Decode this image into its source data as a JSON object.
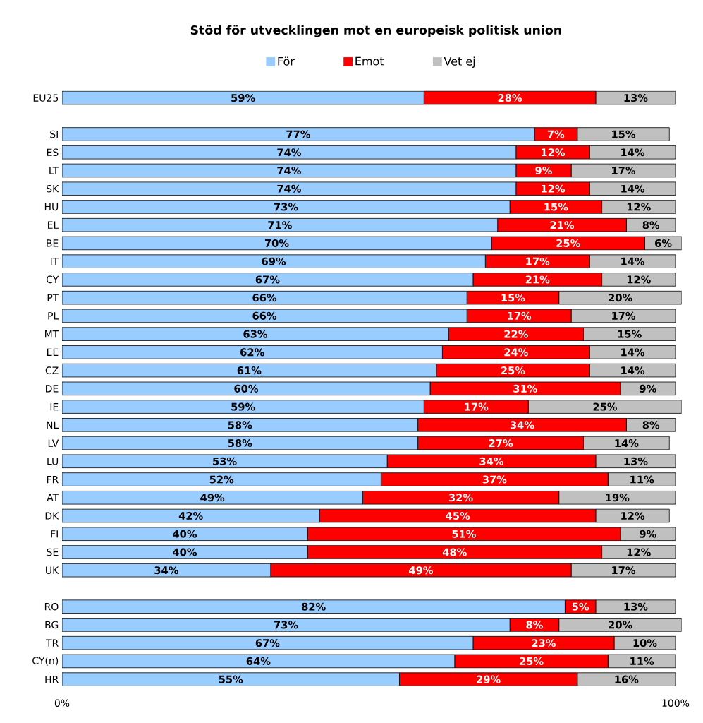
{
  "chart_data": {
    "type": "bar",
    "orientation": "horizontal",
    "stacked": true,
    "title": "Stöd för utvecklingen mot en europeisk politisk union",
    "categories": [
      "EU25",
      null,
      "SI",
      "ES",
      "LT",
      "SK",
      "HU",
      "EL",
      "BE",
      "IT",
      "CY",
      "PT",
      "PL",
      "MT",
      "EE",
      "CZ",
      "DE",
      "IE",
      "NL",
      "LV",
      "LU",
      "FR",
      "AT",
      "DK",
      "FI",
      "SE",
      "UK",
      null,
      "RO",
      "BG",
      "TR",
      "CY(n)",
      "HR"
    ],
    "series": [
      {
        "name": "För",
        "color": "#99ccff",
        "values": [
          59,
          null,
          77,
          74,
          74,
          74,
          73,
          71,
          70,
          69,
          67,
          66,
          66,
          63,
          62,
          61,
          60,
          59,
          58,
          58,
          53,
          52,
          49,
          42,
          40,
          40,
          34,
          null,
          82,
          73,
          67,
          64,
          55
        ],
        "value_labels": [
          "59%",
          null,
          "77%",
          "74%",
          "74%",
          "74%",
          "73%",
          "71%",
          "70%",
          "69%",
          "67%",
          "66%",
          "66%",
          "63%",
          "62%",
          "61%",
          "60%",
          "59%",
          "58%",
          "58%",
          "53%",
          "52%",
          "49%",
          "42%",
          "40%",
          "40%",
          "34%",
          null,
          "82%",
          "73%",
          "67%",
          "64%",
          "55%"
        ]
      },
      {
        "name": "Emot",
        "color": "#ff0000",
        "values": [
          28,
          null,
          7,
          12,
          9,
          12,
          15,
          21,
          25,
          17,
          21,
          15,
          17,
          22,
          24,
          25,
          31,
          17,
          34,
          27,
          34,
          37,
          32,
          45,
          51,
          48,
          49,
          null,
          5,
          8,
          23,
          25,
          29
        ],
        "value_labels": [
          "28%",
          null,
          "7%",
          "12%",
          "9%",
          "12%",
          "15%",
          "21%",
          "25%",
          "17%",
          "21%",
          "15%",
          "17%",
          "22%",
          "24%",
          "25%",
          "31%",
          "17%",
          "34%",
          "27%",
          "34%",
          "37%",
          "32%",
          "45%",
          "51%",
          "48%",
          "49%",
          null,
          "5%",
          "8%",
          "23%",
          "25%",
          "29%"
        ]
      },
      {
        "name": "Vet ej",
        "color": "#c0c0c0",
        "values": [
          13,
          null,
          15,
          14,
          17,
          14,
          12,
          8,
          6,
          14,
          12,
          20,
          17,
          15,
          14,
          14,
          9,
          25,
          8,
          14,
          13,
          11,
          19,
          12,
          9,
          12,
          17,
          null,
          13,
          20,
          10,
          11,
          16
        ],
        "value_labels": [
          "13%",
          null,
          "15%",
          "14%",
          "17%",
          "14%",
          "12%",
          "8%",
          "6%",
          "14%",
          "12%",
          "20%",
          "17%",
          "15%",
          "14%",
          "14%",
          "9%",
          "25%",
          "8%",
          "14%",
          "13%",
          "11%",
          "19%",
          "12%",
          "9%",
          "12%",
          "17%",
          null,
          "13%",
          "20%",
          "10%",
          "11%",
          "16%"
        ]
      }
    ],
    "xlim": [
      0,
      101
    ],
    "xticks": [
      {
        "value": 0,
        "label": "0%"
      },
      {
        "value": 100,
        "label": "100%"
      }
    ],
    "legend": "top",
    "grid": false
  }
}
